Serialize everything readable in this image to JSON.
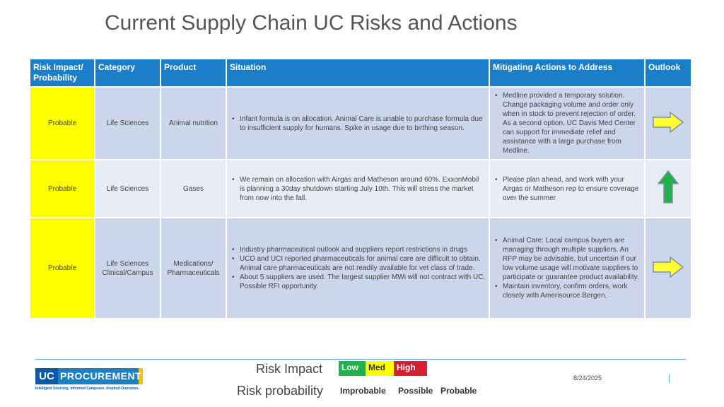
{
  "title": "Current Supply Chain UC Risks and Actions",
  "table": {
    "headers": [
      "Risk Impact/ Probability",
      "Category",
      "Product",
      "Situation",
      "Mitigating Actions to Address",
      "Outlook"
    ],
    "rows": [
      {
        "impact": "Probable",
        "category": "Life Sciences",
        "product": "Animal nutrition",
        "situation": [
          "Infant formula is on allocation. Animal Care is unable to purchase formula due to insufficient supply for humans. Spike in usage due to birthing season."
        ],
        "actions": [
          "Medline provided a temporary solution. Change packaging volume and order only when in stock to prevent rejection of order. As a second option, UC Davis Med Center can support for immediate relief and assistance with a large purchase from Medline."
        ],
        "outlook_icon": "right-arrow-icon",
        "outlook_color": "#ffff33"
      },
      {
        "impact": "Probable",
        "category": "Life Sciences",
        "product": "Gases",
        "situation": [
          "We remain on allocation with Airgas and Matheson around 60%. ExxonMobil is planning a 30day shutdown starting July 10th. This will stress the market from now into the fall."
        ],
        "actions": [
          "Please plan ahead, and work with your Airgas or Matheson rep to ensure coverage over the summer"
        ],
        "outlook_icon": "up-arrow-icon",
        "outlook_color": "#22b04b"
      },
      {
        "impact": "Probable",
        "category": "Life Sciences Clinical/Campus",
        "product": "Medications/ Pharmaceuticals",
        "situation": [
          "Industry pharmaceutical outlook and suppliers report restrictions in drugs",
          "UCD and UCI reported pharmaceuticals for animal care are difficult to obtain. Animal care pharmaceuticals are not readily available for vet class of trade.",
          "About 5 suppliers are used. The largest supplier MWi will not contract with UC. Possible RFI opportunity."
        ],
        "actions": [
          "Animal Care: Local campus buyers are managing through multiple suppliers. An RFP may be advisable, but uncertain if our low volume usage will motivate suppliers to participate or guarantee product availability.",
          "Maintain inventory, confirm orders, work closely with Amerisource Bergen."
        ],
        "outlook_icon": "right-arrow-icon",
        "outlook_color": "#ffff33"
      }
    ]
  },
  "logo": {
    "uc": "UC",
    "name": "PROCUREMENT",
    "tagline": "Intelligent Sourcing. Informed Campuses. Inspired Outcomes."
  },
  "legend": {
    "impact_label": "Risk Impact",
    "probability_label": "Risk probability",
    "impact_levels": [
      {
        "label": "Low",
        "color": "#22b04b"
      },
      {
        "label": "Med",
        "color": "#ffff00"
      },
      {
        "label": "High",
        "color": "#d6202f"
      }
    ],
    "probability_levels": [
      "Improbable",
      "Possible",
      "Probable"
    ]
  },
  "date": "8/24/2025"
}
